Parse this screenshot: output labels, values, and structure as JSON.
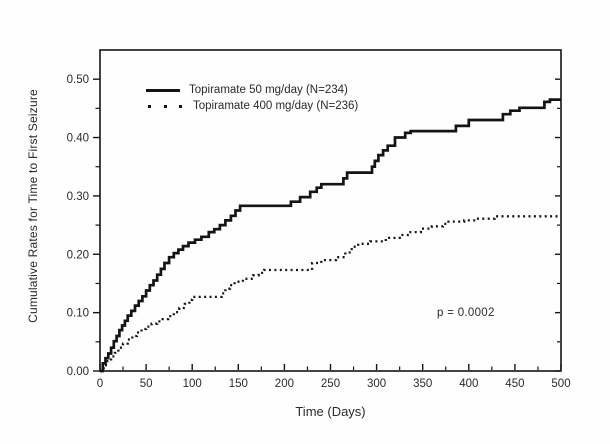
{
  "chart_data": {
    "type": "line",
    "subtype": "kaplan-meier-step",
    "title": "",
    "xlabel": "Time (Days)",
    "ylabel": "Cumulative Rates for Time to First Seizure",
    "xlim": [
      0,
      500
    ],
    "ylim": [
      0,
      0.55
    ],
    "grid": false,
    "legend_position": "upper-left-inside",
    "line_color": "#141414",
    "background_color": "#fefefe",
    "x_ticks": {
      "values": [
        0,
        50,
        100,
        150,
        200,
        250,
        300,
        350,
        400,
        450,
        500
      ],
      "labels": [
        "0",
        "50",
        "100",
        "150",
        "200",
        "250",
        "300",
        "350",
        "400",
        "450",
        "500"
      ],
      "minor_values": [
        25,
        75,
        125,
        175,
        225,
        275,
        325,
        375,
        425,
        475
      ]
    },
    "y_ticks": {
      "values": [
        0.0,
        0.1,
        0.2,
        0.3,
        0.4,
        0.5
      ],
      "labels": [
        "0.00",
        "0.10",
        "0.20",
        "0.30",
        "0.40",
        "0.50"
      ],
      "minor_values": [
        0.05,
        0.15,
        0.25,
        0.35,
        0.45
      ]
    },
    "annotation": {
      "text": "p = 0.0002"
    },
    "series": [
      {
        "name": "Topiramate 50 mg/day (N=234)",
        "style": "solid",
        "points": [
          [
            0,
            0
          ],
          [
            3,
            0.013
          ],
          [
            6,
            0.022
          ],
          [
            9,
            0.03
          ],
          [
            12,
            0.04
          ],
          [
            15,
            0.051
          ],
          [
            18,
            0.06
          ],
          [
            21,
            0.07
          ],
          [
            24,
            0.078
          ],
          [
            27,
            0.086
          ],
          [
            30,
            0.095
          ],
          [
            34,
            0.103
          ],
          [
            38,
            0.112
          ],
          [
            42,
            0.12
          ],
          [
            46,
            0.128
          ],
          [
            50,
            0.138
          ],
          [
            54,
            0.147
          ],
          [
            58,
            0.155
          ],
          [
            62,
            0.165
          ],
          [
            66,
            0.175
          ],
          [
            70,
            0.185
          ],
          [
            75,
            0.195
          ],
          [
            80,
            0.202
          ],
          [
            85,
            0.208
          ],
          [
            90,
            0.214
          ],
          [
            96,
            0.22
          ],
          [
            103,
            0.225
          ],
          [
            110,
            0.23
          ],
          [
            118,
            0.238
          ],
          [
            124,
            0.243
          ],
          [
            130,
            0.25
          ],
          [
            136,
            0.258
          ],
          [
            142,
            0.266
          ],
          [
            147,
            0.275
          ],
          [
            152,
            0.283
          ],
          [
            207,
            0.29
          ],
          [
            217,
            0.298
          ],
          [
            228,
            0.307
          ],
          [
            235,
            0.314
          ],
          [
            240,
            0.32
          ],
          [
            264,
            0.33
          ],
          [
            268,
            0.34
          ],
          [
            295,
            0.35
          ],
          [
            298,
            0.36
          ],
          [
            302,
            0.37
          ],
          [
            307,
            0.378
          ],
          [
            312,
            0.386
          ],
          [
            320,
            0.4
          ],
          [
            331,
            0.408
          ],
          [
            337,
            0.411
          ],
          [
            386,
            0.42
          ],
          [
            400,
            0.43
          ],
          [
            437,
            0.44
          ],
          [
            445,
            0.446
          ],
          [
            455,
            0.451
          ],
          [
            482,
            0.461
          ],
          [
            488,
            0.465
          ],
          [
            500,
            0.465
          ]
        ]
      },
      {
        "name": "Topiramate 400 mg/day (N=236)",
        "style": "dotted",
        "points": [
          [
            0,
            0
          ],
          [
            4,
            0.01
          ],
          [
            8,
            0.017
          ],
          [
            12,
            0.025
          ],
          [
            16,
            0.031
          ],
          [
            20,
            0.04
          ],
          [
            25,
            0.047
          ],
          [
            30,
            0.054
          ],
          [
            35,
            0.06
          ],
          [
            40,
            0.066
          ],
          [
            45,
            0.072
          ],
          [
            50,
            0.076
          ],
          [
            56,
            0.081
          ],
          [
            62,
            0.085
          ],
          [
            68,
            0.089
          ],
          [
            74,
            0.094
          ],
          [
            80,
            0.101
          ],
          [
            86,
            0.108
          ],
          [
            92,
            0.115
          ],
          [
            97,
            0.122
          ],
          [
            100,
            0.127
          ],
          [
            132,
            0.133
          ],
          [
            136,
            0.141
          ],
          [
            141,
            0.147
          ],
          [
            146,
            0.153
          ],
          [
            155,
            0.158
          ],
          [
            166,
            0.164
          ],
          [
            172,
            0.168
          ],
          [
            178,
            0.173
          ],
          [
            230,
            0.185
          ],
          [
            240,
            0.19
          ],
          [
            256,
            0.195
          ],
          [
            266,
            0.203
          ],
          [
            273,
            0.213
          ],
          [
            280,
            0.218
          ],
          [
            293,
            0.222
          ],
          [
            310,
            0.228
          ],
          [
            325,
            0.233
          ],
          [
            335,
            0.238
          ],
          [
            348,
            0.244
          ],
          [
            360,
            0.248
          ],
          [
            372,
            0.252
          ],
          [
            378,
            0.256
          ],
          [
            395,
            0.258
          ],
          [
            408,
            0.261
          ],
          [
            428,
            0.265
          ],
          [
            500,
            0.265
          ]
        ]
      }
    ]
  }
}
